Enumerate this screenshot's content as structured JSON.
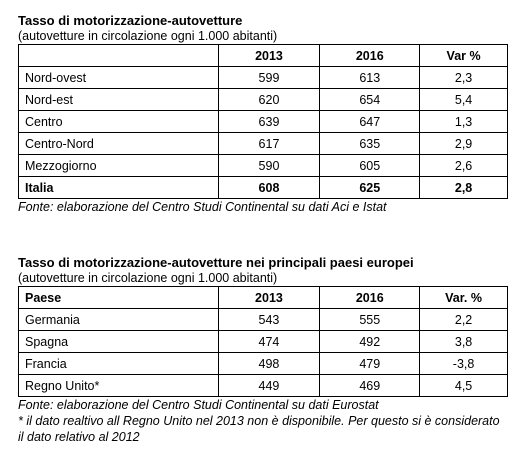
{
  "table1": {
    "title": "Tasso di motorizzazione-autovetture",
    "subtitle": "(autovetture in circolazione ogni 1.000 abitanti)",
    "header": [
      "2013",
      "2016",
      "Var %"
    ],
    "rows": [
      [
        "Nord-ovest",
        "599",
        "613",
        "2,3"
      ],
      [
        "Nord-est",
        "620",
        "654",
        "5,4"
      ],
      [
        "Centro",
        "639",
        "647",
        "1,3"
      ],
      [
        "Centro-Nord",
        "617",
        "635",
        "2,9"
      ],
      [
        "Mezzogiorno",
        "590",
        "605",
        "2,6"
      ],
      [
        "Italia",
        "608",
        "625",
        "2,8"
      ]
    ],
    "source": "Fonte: elaborazione del Centro Studi Continental su dati Aci e Istat"
  },
  "table2": {
    "title": "Tasso di motorizzazione-autovetture nei principali paesi europei",
    "subtitle": "(autovetture in circolazione ogni 1.000 abitanti)",
    "header": [
      "Paese",
      "2013",
      "2016",
      "Var. %"
    ],
    "rows": [
      [
        "Germania",
        "543",
        "555",
        "2,2"
      ],
      [
        "Spagna",
        "474",
        "492",
        "3,8"
      ],
      [
        "Francia",
        "498",
        "479",
        "-3,8"
      ],
      [
        "Regno Unito*",
        "449",
        "469",
        "4,5"
      ]
    ],
    "source": "Fonte: elaborazione del Centro Studi Continental su dati Eurostat",
    "note": "* il dato realtivo all Regno Unito nel 2013 non è disponibile. Per questo si è considerato il dato relativo al 2012"
  }
}
